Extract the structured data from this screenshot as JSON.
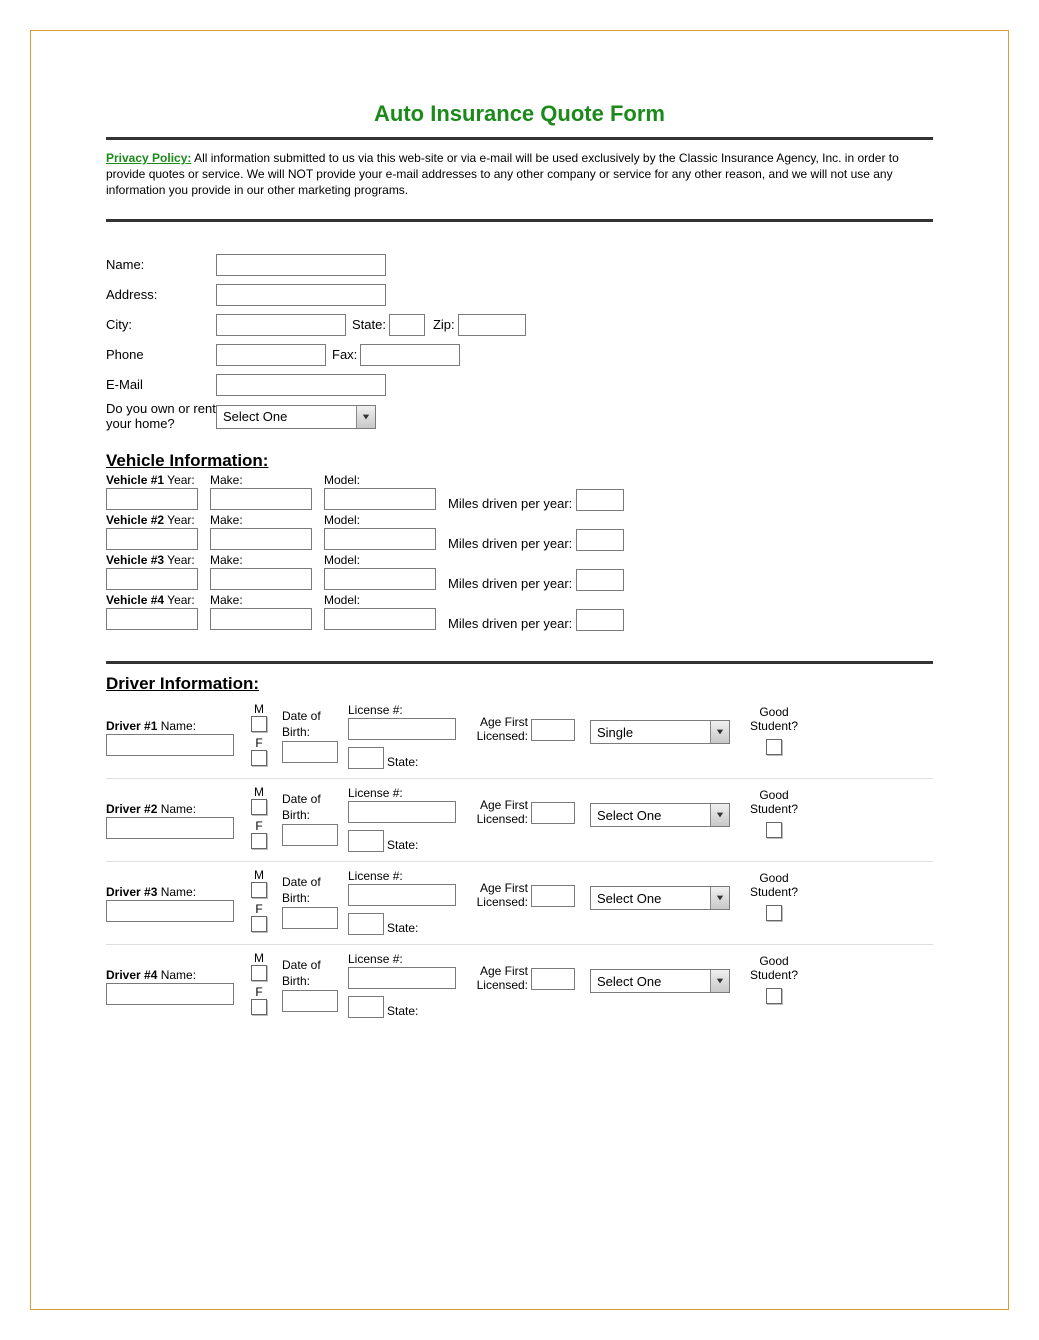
{
  "title": "Auto Insurance Quote Form",
  "privacy": {
    "label": "Privacy Policy:",
    "text": "All information submitted to us via this web-site or via e-mail will be used exclusively by the Classic Insurance Agency, Inc. in order to provide quotes or service.  We will NOT provide your e-mail addresses to any other company or service for any other reason, and we will not use any information you provide in our other marketing programs."
  },
  "contact": {
    "name_label": "Name:",
    "address_label": "Address:",
    "city_label": "City:",
    "state_label": "State:",
    "zip_label": "Zip:",
    "phone_label": "Phone",
    "fax_label": "Fax:",
    "email_label": "E-Mail",
    "home_label": "Do you own or rent your home?",
    "home_select": "Select One"
  },
  "vehicle_section_heading": "Vehicle Information:",
  "vehicle_labels": {
    "year": "Year:",
    "make": "Make:",
    "model": "Model:",
    "miles": "Miles driven per year:"
  },
  "vehicles": [
    {
      "prefix": "Vehicle #1"
    },
    {
      "prefix": "Vehicle #2"
    },
    {
      "prefix": "Vehicle #3"
    },
    {
      "prefix": "Vehicle #4"
    }
  ],
  "driver_section_heading": "Driver Information:",
  "driver_labels": {
    "name": "Name:",
    "m": "M",
    "f": "F",
    "dob": "Date of Birth:",
    "license": "License #:",
    "state": "State:",
    "age_first": "Age First Licensed:",
    "good_student": "Good Student?"
  },
  "drivers": [
    {
      "prefix": "Driver #1",
      "marital": "Single"
    },
    {
      "prefix": "Driver #2",
      "marital": "Select One"
    },
    {
      "prefix": "Driver #3",
      "marital": "Select One"
    },
    {
      "prefix": "Driver #4",
      "marital": "Select One"
    }
  ],
  "colors": {
    "border": "#d99b3a",
    "title": "#1b8a1b",
    "rule": "#333333"
  }
}
